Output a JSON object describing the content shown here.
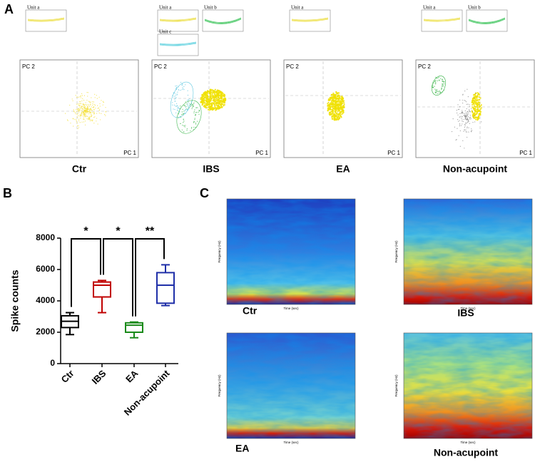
{
  "panel_labels": [
    "A",
    "B",
    "C"
  ],
  "panel_a": {
    "groups": [
      {
        "name": "Ctr",
        "units": [
          "Unit a"
        ],
        "y_label": "PC 2",
        "x_label": "PC 1"
      },
      {
        "name": "IBS",
        "units": [
          "Unit a",
          "Unit b",
          "Unit c"
        ],
        "y_label": "PC 2",
        "x_label": "PC 1"
      },
      {
        "name": "EA",
        "units": [
          "Unit a"
        ],
        "y_label": "PC 2",
        "x_label": "PC 1"
      },
      {
        "name": "Non-acupoint",
        "units": [
          "Unit a",
          "Unit b"
        ],
        "y_label": "PC 2",
        "x_label": "PC 1"
      }
    ]
  },
  "chart_data": {
    "type": "box",
    "ylabel": "Spike counts",
    "categories": [
      "Ctr",
      "IBS",
      "EA",
      "Non-acupoint"
    ],
    "colors": [
      "#000000",
      "#c00000",
      "#1a8a1a",
      "#1f2fa8"
    ],
    "boxes": [
      {
        "min": 1850,
        "q1": 2300,
        "median": 2700,
        "q3": 3050,
        "max": 3250
      },
      {
        "min": 3250,
        "q1": 4250,
        "median": 5000,
        "q3": 5200,
        "max": 5300
      },
      {
        "min": 1650,
        "q1": 2000,
        "median": 2450,
        "q3": 2600,
        "max": 2650
      },
      {
        "min": 3700,
        "q1": 3850,
        "median": 5000,
        "q3": 5800,
        "max": 6300
      }
    ],
    "annotations": [
      "*",
      "*",
      "**"
    ],
    "ylim": [
      0,
      8000
    ],
    "yticks": [
      0,
      2000,
      4000,
      6000,
      8000
    ]
  },
  "panel_c": {
    "spectrograms": [
      {
        "name": "Ctr",
        "y_label": "Frequency (Hz)",
        "x_label": "Time (sec)"
      },
      {
        "name": "IBS",
        "y_label": "Frequency (Hz)",
        "x_label": "Time (sec)"
      },
      {
        "name": "EA",
        "y_label": "Frequency (Hz)",
        "x_label": "Time (sec)"
      },
      {
        "name": "Non-acupoint",
        "y_label": "Frequency (Hz)",
        "x_label": "Time (sec)"
      }
    ]
  }
}
